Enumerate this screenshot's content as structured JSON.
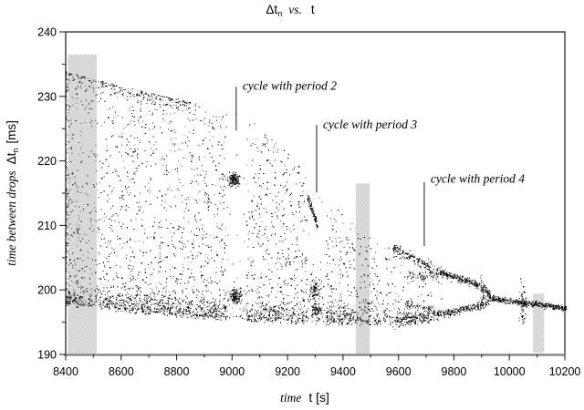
{
  "title": {
    "delta_t": "Δt",
    "sub": "n",
    "vs": "vs.",
    "var": "t"
  },
  "x_axis": {
    "word": "time",
    "symbol": "t [s]",
    "ticks": [
      8400,
      8600,
      8800,
      9000,
      9200,
      9400,
      9600,
      9800,
      10000,
      10200
    ]
  },
  "y_axis": {
    "word": "time between drops",
    "symbol": "Δt",
    "sub": "n",
    "units": "[ms]",
    "ticks": [
      240,
      230,
      220,
      210,
      200,
      190
    ]
  },
  "chart_data": {
    "type": "scatter",
    "title": "Delta t_n vs. t",
    "xlabel": "time t [s]",
    "ylabel": "time between drops Delta t_n [ms]",
    "xlim": [
      8400,
      10200
    ],
    "ylim": [
      190,
      240
    ],
    "x_major_step": 200,
    "x_minor_step": 100,
    "y_major_step": 10,
    "y_minor_step": 5,
    "description": "Dripping-faucet chaos experiment: drop interval Delta t_n versus time. A broad chaotic band (approx. 195-234 ms at t=8400 s) narrows with time, shows periodic windows (period 2 near t=9000 s, period 3 near t=9300 s, period 4 near t=9700 s) and collapses through an inverse bifurcation into a single branch near 198.6 ms at t=9930 s, drifting down to about 197 ms at t=10200 s.",
    "annotations": [
      {
        "label": "cycle with period 2",
        "line_t": 9015,
        "line_dt_top": 231.5,
        "line_dt_bottom": 224.7,
        "label_t": 9038,
        "label_dt": 231.0
      },
      {
        "label": "cycle with period 3",
        "line_t": 9305,
        "line_dt_top": 225.6,
        "line_dt_bottom": 215.1,
        "label_t": 9328,
        "label_dt": 225.0
      },
      {
        "label": "cycle with period 4",
        "line_t": 9693,
        "line_dt_top": 216.7,
        "line_dt_bottom": 206.8,
        "label_t": 9716,
        "label_dt": 216.6
      }
    ],
    "highlight_bars": [
      {
        "t0": 8408,
        "t1": 8512,
        "dt_top": 236.5,
        "dt_bottom": 190.1
      },
      {
        "t0": 9446,
        "t1": 9496,
        "dt_top": 216.5,
        "dt_bottom": 190.1
      },
      {
        "t0": 10085,
        "t1": 10125,
        "dt_top": 199.4,
        "dt_bottom": 190.3
      }
    ],
    "generation": {
      "seed": 1371945,
      "dot_size": 1.2,
      "top_envelope": [
        [
          8400,
          233.8
        ],
        [
          8600,
          231.6
        ],
        [
          8800,
          229.6
        ],
        [
          9000,
          227.5
        ],
        [
          9100,
          225.5
        ],
        [
          9200,
          221.5
        ],
        [
          9290,
          216.5
        ],
        [
          9390,
          212.3
        ],
        [
          9490,
          208.5
        ],
        [
          9590,
          206.3
        ],
        [
          9690,
          205.0
        ],
        [
          9770,
          204.2
        ]
      ],
      "bottom_envelope": [
        [
          8400,
          197.5
        ],
        [
          8600,
          196.6
        ],
        [
          8800,
          195.8
        ],
        [
          9000,
          195.2
        ],
        [
          9200,
          194.8
        ],
        [
          9400,
          194.5
        ],
        [
          9600,
          194.6
        ],
        [
          9770,
          194.9
        ]
      ],
      "body": {
        "count": 2200,
        "bias": 1.45,
        "t_max": 9770,
        "weight": [
          [
            8400,
            1
          ],
          [
            9120,
            1
          ],
          [
            9270,
            0.85
          ],
          [
            9420,
            0.6
          ],
          [
            9520,
            0.42
          ],
          [
            9620,
            0.26
          ],
          [
            9730,
            0.13
          ],
          [
            9770,
            0.05
          ]
        ]
      },
      "bottom_band": {
        "count": 1100,
        "sigma": 1.5,
        "offset": 0.3,
        "t_max": 9750,
        "weight": [
          [
            8400,
            1
          ],
          [
            9380,
            1
          ],
          [
            9520,
            0.7
          ],
          [
            9620,
            0.35
          ],
          [
            9750,
            0.15
          ]
        ]
      },
      "top_edge": {
        "count": 220,
        "t_min": 8400,
        "t_max": 8870,
        "sigma": 0.9
      },
      "left_edge": {
        "count": 120,
        "sigma_t": 8,
        "bias": 1.2
      },
      "windows": [
        {
          "t0": 8980,
          "t1": 9052,
          "keep": 0.14
        },
        {
          "t0": 9272,
          "t1": 9340,
          "keep": 0.18
        }
      ],
      "clusters": [
        {
          "t": 9009,
          "dt": 217.1,
          "st": 11,
          "sd": 0.5,
          "n": 150
        },
        {
          "t": 9013,
          "dt": 199.0,
          "st": 11,
          "sd": 0.55,
          "n": 150
        },
        {
          "t": 9298,
          "dt": 200.0,
          "st": 11,
          "sd": 0.9,
          "n": 90
        },
        {
          "t": 9305,
          "dt": 196.8,
          "st": 11,
          "sd": 0.6,
          "n": 80
        },
        {
          "t": 9905,
          "dt": 199.6,
          "st": 5,
          "sd": 1.1,
          "n": 35
        },
        {
          "t": 10048,
          "dt": 197.7,
          "st": 6,
          "sd": 1.5,
          "n": 65
        }
      ],
      "streaks": [
        {
          "t0": 9272,
          "d0": 214.5,
          "t1": 9310,
          "d1": 209.8,
          "n": 100,
          "j": 0.35
        },
        {
          "t0": 9580,
          "d0": 206.5,
          "t1": 9752,
          "d1": 202.7,
          "n": 170,
          "j": 0.45
        },
        {
          "t0": 9620,
          "d0": 202.0,
          "t1": 9745,
          "d1": 202.4,
          "n": 70,
          "j": 0.4
        },
        {
          "t0": 9580,
          "d0": 194.9,
          "t1": 9732,
          "d1": 196.1,
          "n": 150,
          "j": 0.45
        },
        {
          "t0": 9625,
          "d0": 197.9,
          "t1": 9732,
          "d1": 196.6,
          "n": 65,
          "j": 0.35
        },
        {
          "t0": 9933,
          "d0": 198.65,
          "t1": 10205,
          "d1": 197.15,
          "n": 430,
          "j": 0.22
        }
      ],
      "curves": [
        {
          "t0": 9752,
          "t1": 9933,
          "dt_merge": 198.65,
          "amp": 4.0,
          "n": 280,
          "j": 0.3
        },
        {
          "t0": 9732,
          "t1": 9933,
          "dt_merge": 198.65,
          "amp": -2.45,
          "n": 230,
          "j": 0.28
        }
      ]
    }
  }
}
